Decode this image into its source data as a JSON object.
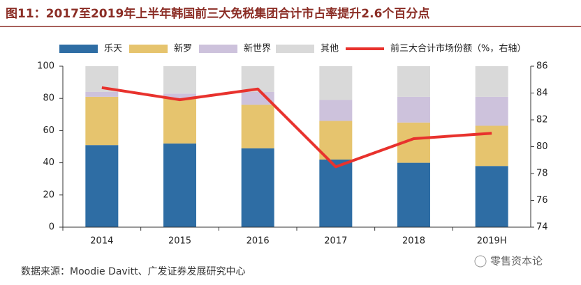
{
  "chart_data": {
    "type": "bar",
    "title": "图11：2017至2019年上半年韩国前三大免税集团合计市占率提升2.6个百分点",
    "categories": [
      "2014",
      "2015",
      "2016",
      "2017",
      "2018",
      "2019H"
    ],
    "series": [
      {
        "name": "乐天",
        "color": "#2e6da4",
        "values": [
          51,
          52,
          49,
          42,
          40,
          38
        ]
      },
      {
        "name": "新罗",
        "color": "#e6c46e",
        "values": [
          30,
          28,
          27,
          24,
          25,
          25
        ]
      },
      {
        "name": "新世界",
        "color": "#cdc2dc",
        "values": [
          3,
          3,
          8,
          13,
          16,
          18
        ]
      },
      {
        "name": "其他",
        "color": "#d9d9d9",
        "values": [
          16,
          17,
          16,
          21,
          19,
          19
        ]
      },
      {
        "name": "前三大合计市场份额（%，右轴）",
        "color": "#e8322d",
        "type": "line",
        "axis": "y2",
        "values": [
          84.4,
          83.5,
          84.3,
          78.5,
          80.6,
          81.0
        ]
      }
    ],
    "ylim": [
      0,
      100
    ],
    "yticks": [
      0,
      20,
      40,
      60,
      80,
      100
    ],
    "y2lim": [
      74,
      86
    ],
    "y2ticks": [
      74,
      76,
      78,
      80,
      82,
      84,
      86
    ],
    "source": "数据来源：Moodie Davitt、广发证券发展研究中心",
    "watermark": "零售资本论"
  }
}
